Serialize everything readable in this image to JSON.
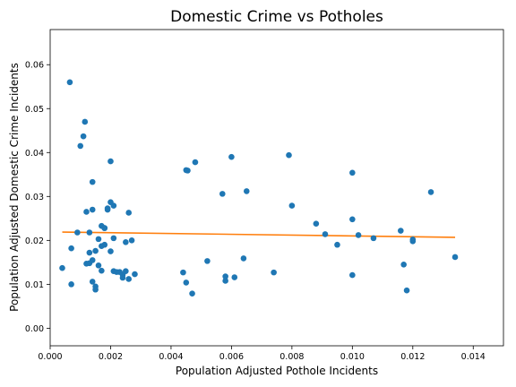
{
  "chart_data": {
    "type": "scatter",
    "title": "Domestic Crime vs Potholes",
    "xlabel": "Population Adjusted Pothole Incidents",
    "ylabel": "Population Adjusted Domestic Crime Incidents",
    "xlim": [
      0.0,
      0.015
    ],
    "ylim": [
      -0.004,
      0.068
    ],
    "xticks": [
      0.0,
      0.002,
      0.004,
      0.006,
      0.008,
      0.01,
      0.012,
      0.014
    ],
    "xtick_labels": [
      "0.000",
      "0.002",
      "0.004",
      "0.006",
      "0.008",
      "0.010",
      "0.012",
      "0.014"
    ],
    "yticks": [
      0.0,
      0.01,
      0.02,
      0.03,
      0.04,
      0.05,
      0.06
    ],
    "ytick_labels": [
      "0.00",
      "0.01",
      "0.02",
      "0.03",
      "0.04",
      "0.05",
      "0.06"
    ],
    "grid": false,
    "scatter_color": "#1f77b4",
    "line_color": "#ff7f0e",
    "points": [
      [
        0.0004,
        0.0137
      ],
      [
        0.00065,
        0.056
      ],
      [
        0.0007,
        0.0182
      ],
      [
        0.0007,
        0.01
      ],
      [
        0.0009,
        0.0218
      ],
      [
        0.001,
        0.0415
      ],
      [
        0.0011,
        0.0437
      ],
      [
        0.00115,
        0.047
      ],
      [
        0.0012,
        0.0265
      ],
      [
        0.0012,
        0.0147
      ],
      [
        0.0013,
        0.0218
      ],
      [
        0.0013,
        0.0148
      ],
      [
        0.0013,
        0.0172
      ],
      [
        0.0014,
        0.0155
      ],
      [
        0.0014,
        0.0106
      ],
      [
        0.0014,
        0.0333
      ],
      [
        0.0014,
        0.027
      ],
      [
        0.0015,
        0.0176
      ],
      [
        0.0015,
        0.0095
      ],
      [
        0.0015,
        0.0088
      ],
      [
        0.0016,
        0.0143
      ],
      [
        0.0016,
        0.0203
      ],
      [
        0.0017,
        0.0233
      ],
      [
        0.0017,
        0.0187
      ],
      [
        0.0017,
        0.0131
      ],
      [
        0.0018,
        0.0228
      ],
      [
        0.0018,
        0.019
      ],
      [
        0.0018,
        0.0228
      ],
      [
        0.0019,
        0.027
      ],
      [
        0.0019,
        0.0273
      ],
      [
        0.002,
        0.038
      ],
      [
        0.002,
        0.0287
      ],
      [
        0.002,
        0.0175
      ],
      [
        0.0021,
        0.0205
      ],
      [
        0.0021,
        0.013
      ],
      [
        0.0021,
        0.0279
      ],
      [
        0.0022,
        0.0128
      ],
      [
        0.0023,
        0.0128
      ],
      [
        0.0024,
        0.0122
      ],
      [
        0.0024,
        0.0115
      ],
      [
        0.0025,
        0.013
      ],
      [
        0.0025,
        0.0196
      ],
      [
        0.0026,
        0.0112
      ],
      [
        0.0026,
        0.0263
      ],
      [
        0.0027,
        0.02
      ],
      [
        0.0028,
        0.0123
      ],
      [
        0.0044,
        0.0127
      ],
      [
        0.0045,
        0.0104
      ],
      [
        0.0045,
        0.036
      ],
      [
        0.00455,
        0.0359
      ],
      [
        0.0047,
        0.0079
      ],
      [
        0.0048,
        0.0378
      ],
      [
        0.0052,
        0.0153
      ],
      [
        0.0057,
        0.0306
      ],
      [
        0.0058,
        0.0108
      ],
      [
        0.0058,
        0.0118
      ],
      [
        0.006,
        0.039
      ],
      [
        0.0061,
        0.0116
      ],
      [
        0.0064,
        0.0159
      ],
      [
        0.0065,
        0.0312
      ],
      [
        0.0074,
        0.0127
      ],
      [
        0.0079,
        0.0394
      ],
      [
        0.008,
        0.0279
      ],
      [
        0.0088,
        0.0238
      ],
      [
        0.0091,
        0.0214
      ],
      [
        0.0095,
        0.019
      ],
      [
        0.01,
        0.0354
      ],
      [
        0.01,
        0.0248
      ],
      [
        0.01,
        0.0121
      ],
      [
        0.0102,
        0.0212
      ],
      [
        0.0107,
        0.0205
      ],
      [
        0.0116,
        0.0222
      ],
      [
        0.0117,
        0.0145
      ],
      [
        0.0118,
        0.0086
      ],
      [
        0.012,
        0.0198
      ],
      [
        0.012,
        0.0202
      ],
      [
        0.0126,
        0.031
      ],
      [
        0.0134,
        0.0162
      ]
    ],
    "trendline": [
      [
        0.0004,
        0.0219
      ],
      [
        0.0134,
        0.0207
      ]
    ]
  }
}
